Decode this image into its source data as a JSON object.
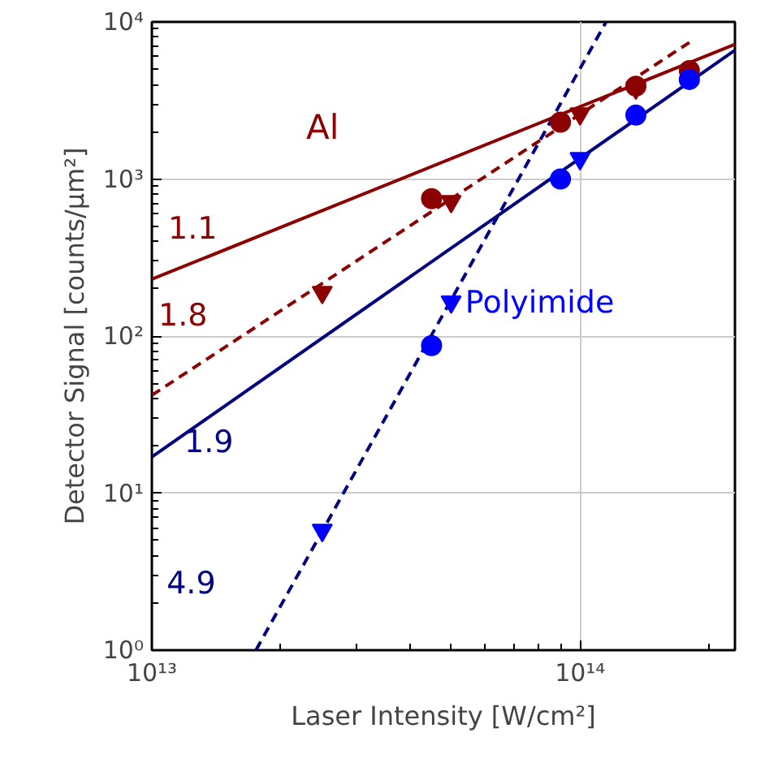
{
  "chart_data": {
    "type": "scatter",
    "xlabel": "Laser Intensity [W/cm²]",
    "ylabel": "Detector Signal [counts/µm²]",
    "log": "xy",
    "grid": true,
    "xlim": [
      10000000000000.0,
      230000000000000.0
    ],
    "ylim": [
      1,
      10000
    ],
    "xticks": [
      {
        "value": 10000000000000.0,
        "label": "10¹³"
      },
      {
        "value": 100000000000000.0,
        "label": "10¹⁴"
      }
    ],
    "yticks": [
      {
        "value": 1,
        "label": "10⁰"
      },
      {
        "value": 10,
        "label": "10¹"
      },
      {
        "value": 100,
        "label": "10²"
      },
      {
        "value": 1000,
        "label": "10³"
      },
      {
        "value": 10000,
        "label": "10⁴"
      }
    ],
    "series": [
      {
        "type": "line",
        "name": "1.1",
        "line_style": "solid",
        "color": "#8b0000",
        "x": [
          10000000000000.0,
          230000000000000.0
        ],
        "values": [
          230,
          7200
        ]
      },
      {
        "type": "line",
        "name": "1.8",
        "line_style": "dashed",
        "color": "#8b0000",
        "x": [
          10000000000000.0,
          180000000000000.0
        ],
        "values": [
          42,
          7400
        ]
      },
      {
        "type": "line",
        "name": "1.9",
        "line_style": "solid",
        "color": "#000080",
        "x": [
          10000000000000.0,
          230000000000000.0
        ],
        "values": [
          17,
          6600
        ]
      },
      {
        "type": "line",
        "name": "4.9",
        "line_style": "dashed",
        "color": "#000080",
        "x": [
          17500000000000.0,
          115000000000000.0
        ],
        "values": [
          1,
          10000
        ]
      },
      {
        "marker": "circle",
        "color": "#8b0000",
        "x": [
          45000000000000.0,
          90000000000000.0,
          135000000000000.0,
          180000000000000.0
        ],
        "values": [
          750,
          2300,
          3900,
          4900
        ]
      },
      {
        "marker": "triangle",
        "color": "#8b0000",
        "x": [
          25000000000000.0,
          50000000000000.0,
          100000000000000.0,
          135000000000000.0
        ],
        "values": [
          190,
          720,
          2600,
          3800
        ]
      },
      {
        "marker": "circle",
        "color": "#0000ff",
        "x": [
          45000000000000.0,
          90000000000000.0,
          135000000000000.0,
          180000000000000.0
        ],
        "values": [
          87,
          1000,
          2550,
          4300
        ]
      },
      {
        "name": "Polyimide",
        "marker": "triangle",
        "color": "#0000ff",
        "x": [
          25000000000000.0,
          50000000000000.0,
          100000000000000.0
        ],
        "values": [
          5.8,
          165,
          1350
        ]
      }
    ],
    "annotations": [
      "Al"
    ]
  }
}
